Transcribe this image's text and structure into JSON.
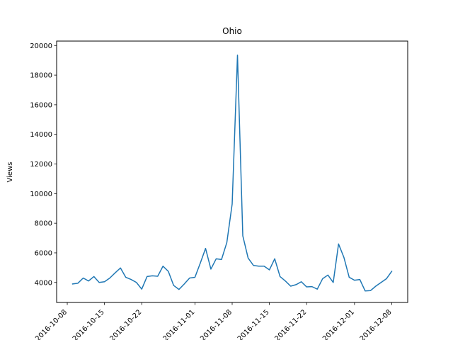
{
  "chart_data": {
    "type": "line",
    "title": "Ohio",
    "xlabel": "",
    "ylabel": "Views",
    "ylim": [
      2650,
      20300
    ],
    "xlim": [
      "2016-10-06",
      "2016-12-11"
    ],
    "x_ticks": [
      "2016-10-08",
      "2016-10-15",
      "2016-10-22",
      "2016-11-01",
      "2016-11-08",
      "2016-11-15",
      "2016-11-22",
      "2016-12-01",
      "2016-12-08"
    ],
    "y_ticks": [
      4000,
      6000,
      8000,
      10000,
      12000,
      14000,
      16000,
      18000,
      20000
    ],
    "grid": false,
    "color": "#1f77b4",
    "series": [
      {
        "x": [
          "2016-10-09",
          "2016-10-10",
          "2016-10-11",
          "2016-10-12",
          "2016-10-13",
          "2016-10-14",
          "2016-10-15",
          "2016-10-16",
          "2016-10-17",
          "2016-10-18",
          "2016-10-19",
          "2016-10-20",
          "2016-10-21",
          "2016-10-22",
          "2016-10-23",
          "2016-10-24",
          "2016-10-25",
          "2016-10-26",
          "2016-10-27",
          "2016-10-28",
          "2016-10-29",
          "2016-10-30",
          "2016-10-31",
          "2016-11-01",
          "2016-11-02",
          "2016-11-03",
          "2016-11-04",
          "2016-11-05",
          "2016-11-06",
          "2016-11-07",
          "2016-11-08",
          "2016-11-09",
          "2016-11-10",
          "2016-11-11",
          "2016-11-12",
          "2016-11-13",
          "2016-11-14",
          "2016-11-15",
          "2016-11-16",
          "2016-11-17",
          "2016-11-18",
          "2016-11-19",
          "2016-11-20",
          "2016-11-21",
          "2016-11-22",
          "2016-11-23",
          "2016-11-24",
          "2016-11-25",
          "2016-11-26",
          "2016-11-27",
          "2016-11-28",
          "2016-11-29",
          "2016-11-30",
          "2016-12-01",
          "2016-12-02",
          "2016-12-03",
          "2016-12-04",
          "2016-12-05",
          "2016-12-06",
          "2016-12-07",
          "2016-12-08"
        ],
        "values": [
          3900,
          3950,
          4300,
          4100,
          4400,
          4000,
          4050,
          4300,
          4650,
          4980,
          4350,
          4200,
          4000,
          3550,
          4400,
          4450,
          4420,
          5100,
          4750,
          3800,
          3530,
          3900,
          4300,
          4350,
          5300,
          6300,
          4900,
          5600,
          5550,
          6700,
          9300,
          19350,
          7150,
          5650,
          5150,
          5100,
          5100,
          4850,
          5600,
          4400,
          4100,
          3750,
          3850,
          4050,
          3700,
          3720,
          3550,
          4250,
          4500,
          4000,
          6600,
          5700,
          4350,
          4150,
          4200,
          3430,
          3450,
          3750,
          4000,
          4250,
          4750
        ]
      }
    ]
  }
}
